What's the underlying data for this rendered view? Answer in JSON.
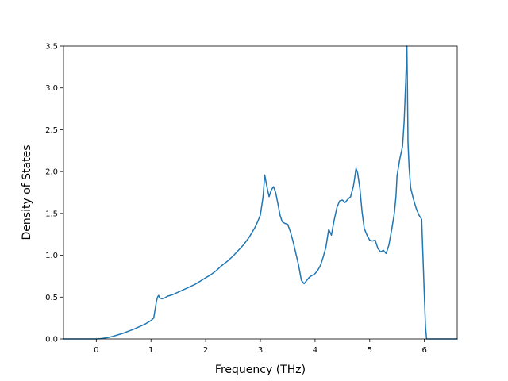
{
  "chart_data": {
    "type": "line",
    "title": "",
    "xlabel": "Frequency (THz)",
    "ylabel": "Density of States",
    "xlim": [
      -0.6,
      6.6
    ],
    "ylim": [
      0.0,
      3.5
    ],
    "xticks": [
      0,
      1,
      2,
      3,
      4,
      5,
      6
    ],
    "yticks": [
      0.0,
      0.5,
      1.0,
      1.5,
      2.0,
      2.5,
      3.0,
      3.5
    ],
    "xtick_labels": [
      "0",
      "1",
      "2",
      "3",
      "4",
      "5",
      "6"
    ],
    "ytick_labels": [
      "0.0",
      "0.5",
      "1.0",
      "1.5",
      "2.0",
      "2.5",
      "3.0",
      "3.5"
    ],
    "grid": false,
    "line_color": "#1f77b4",
    "series": [
      {
        "x": [
          -0.6,
          -0.4,
          -0.2,
          0.0,
          0.1,
          0.2,
          0.3,
          0.4,
          0.5,
          0.6,
          0.7,
          0.8,
          0.9,
          1.0,
          1.05,
          1.1,
          1.12,
          1.14,
          1.16,
          1.2,
          1.25,
          1.3,
          1.4,
          1.5,
          1.6,
          1.7,
          1.8,
          1.9,
          2.0,
          2.1,
          2.2,
          2.3,
          2.4,
          2.5,
          2.6,
          2.7,
          2.8,
          2.9,
          2.95,
          3.0,
          3.05,
          3.08,
          3.12,
          3.16,
          3.2,
          3.24,
          3.28,
          3.32,
          3.36,
          3.4,
          3.45,
          3.5,
          3.55,
          3.6,
          3.65,
          3.7,
          3.75,
          3.8,
          3.85,
          3.9,
          3.95,
          4.0,
          4.05,
          4.1,
          4.15,
          4.2,
          4.25,
          4.3,
          4.35,
          4.4,
          4.45,
          4.5,
          4.55,
          4.6,
          4.65,
          4.7,
          4.72,
          4.75,
          4.78,
          4.82,
          4.86,
          4.9,
          4.95,
          5.0,
          5.05,
          5.1,
          5.15,
          5.2,
          5.25,
          5.3,
          5.35,
          5.4,
          5.45,
          5.48,
          5.5,
          5.55,
          5.6,
          5.63,
          5.66,
          5.68,
          5.69,
          5.7,
          5.72,
          5.75,
          5.8,
          5.85,
          5.9,
          5.95,
          6.0,
          6.02,
          6.04,
          6.06,
          6.1,
          6.3,
          6.6
        ],
        "values": [
          0.0,
          0.0,
          0.0,
          0.0,
          0.005,
          0.015,
          0.03,
          0.05,
          0.07,
          0.095,
          0.12,
          0.15,
          0.18,
          0.22,
          0.25,
          0.45,
          0.5,
          0.52,
          0.49,
          0.48,
          0.49,
          0.51,
          0.53,
          0.56,
          0.59,
          0.62,
          0.65,
          0.69,
          0.73,
          0.77,
          0.82,
          0.88,
          0.93,
          0.99,
          1.06,
          1.13,
          1.22,
          1.33,
          1.4,
          1.48,
          1.7,
          1.96,
          1.82,
          1.7,
          1.78,
          1.82,
          1.75,
          1.62,
          1.48,
          1.4,
          1.38,
          1.37,
          1.28,
          1.16,
          1.02,
          0.88,
          0.7,
          0.66,
          0.7,
          0.74,
          0.76,
          0.78,
          0.82,
          0.88,
          0.98,
          1.1,
          1.31,
          1.24,
          1.42,
          1.57,
          1.65,
          1.66,
          1.63,
          1.67,
          1.7,
          1.82,
          1.9,
          2.04,
          1.98,
          1.8,
          1.52,
          1.32,
          1.24,
          1.18,
          1.17,
          1.18,
          1.08,
          1.04,
          1.06,
          1.02,
          1.12,
          1.3,
          1.5,
          1.7,
          1.95,
          2.15,
          2.3,
          2.6,
          3.1,
          3.5,
          3.0,
          2.35,
          2.05,
          1.8,
          1.67,
          1.56,
          1.48,
          1.43,
          0.5,
          0.15,
          0.0,
          0.0,
          0.0,
          0.0,
          0.0
        ]
      }
    ]
  }
}
